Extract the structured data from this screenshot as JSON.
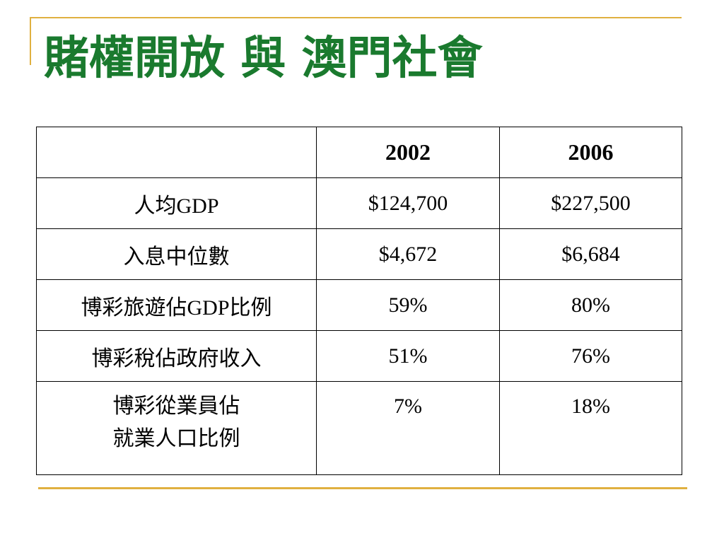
{
  "slide": {
    "title": "賭權開放 與 澳門社會"
  },
  "table": {
    "headers": [
      "",
      "2002",
      "2006"
    ],
    "rows": [
      {
        "label": [
          "人均GDP"
        ],
        "values": [
          "$124,700",
          "$227,500"
        ]
      },
      {
        "label": [
          "入息中位數"
        ],
        "values": [
          "$4,672",
          "$6,684"
        ]
      },
      {
        "label": [
          "博彩旅遊佔GDP比例"
        ],
        "values": [
          "59%",
          "80%"
        ]
      },
      {
        "label": [
          "博彩稅佔政府收入"
        ],
        "values": [
          "51%",
          "76%"
        ]
      },
      {
        "label": [
          "博彩從業員佔",
          "就業人口比例"
        ],
        "values": [
          "7%",
          "18%"
        ]
      }
    ]
  },
  "colors": {
    "title": "#1a7a2e",
    "accent": "#e0b040",
    "border": "#000000"
  }
}
